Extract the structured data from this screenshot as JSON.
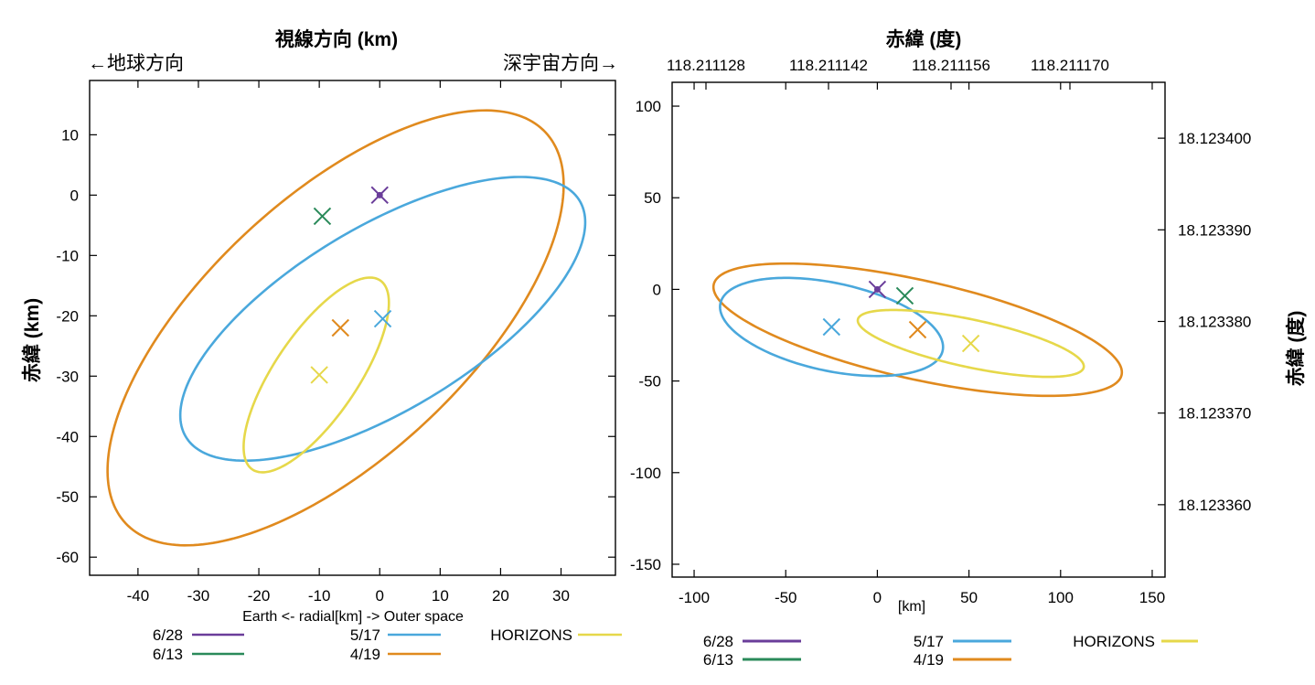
{
  "chart_data": [
    {
      "type": "scatter",
      "title": "視線方向 (km)",
      "left_direction": "←地球方向",
      "right_direction": "深宇宙方向→",
      "xlabel": "Earth <-  radial[km] -> Outer space",
      "ylabel": "赤緯 (km)",
      "xlim": [
        -48,
        39
      ],
      "ylim": [
        -63,
        19
      ],
      "xticks": [
        -40,
        -30,
        -20,
        -10,
        0,
        10,
        20,
        30
      ],
      "yticks": [
        10,
        0,
        -10,
        -20,
        -30,
        -40,
        -50,
        -60
      ],
      "grid": false,
      "legend_position": "bottom",
      "legend": [
        {
          "name": "6/28",
          "color": "#6a3d9a"
        },
        {
          "name": "6/13",
          "color": "#2a8a5a"
        },
        {
          "name": "5/17",
          "color": "#4aa8dc"
        },
        {
          "name": "4/19",
          "color": "#e08a1e"
        },
        {
          "name": "HORIZONS",
          "color": "#e6d84a"
        }
      ],
      "points": [
        {
          "series": "6/28",
          "x": 0,
          "y": 0,
          "color": "#6a3d9a"
        },
        {
          "series": "6/13",
          "x": -9.5,
          "y": -3.5,
          "color": "#2a8a5a"
        },
        {
          "series": "5/17",
          "x": 0.5,
          "y": -20.5,
          "color": "#4aa8dc"
        },
        {
          "series": "4/19",
          "x": -6.5,
          "y": -22,
          "color": "#e08a1e"
        },
        {
          "series": "HORIZONS",
          "x": -10,
          "y": -29.8,
          "color": "#e6d84a"
        }
      ],
      "ellipses": [
        {
          "series": "4/19",
          "cx": -7.3,
          "cy": -22,
          "semi_major": 47.5,
          "semi_minor": 21.6,
          "angle_deg": 43,
          "color": "#e08a1e"
        },
        {
          "series": "5/17",
          "cx": 0.5,
          "cy": -20.5,
          "semi_major": 38.0,
          "semi_minor": 15.2,
          "angle_deg": 31,
          "color": "#4aa8dc"
        },
        {
          "series": "HORIZONS",
          "cx": -10.5,
          "cy": -29.8,
          "semi_major": 18.9,
          "semi_minor": 6.9,
          "angle_deg": 56,
          "color": "#e6d84a"
        }
      ]
    },
    {
      "type": "scatter",
      "title": "赤緯 (度)",
      "xlabel": "[km]",
      "ylabel_right": "赤緯 (度)",
      "top_axis_labels": [
        "118.211128",
        "118.211142",
        "118.211156",
        "118.211170"
      ],
      "right_axis_labels": [
        "18.123400",
        "18.123390",
        "18.123380",
        "18.123370",
        "18.123360"
      ],
      "right_axis_positions": [
        82.5,
        32.5,
        -17.5,
        -67.5,
        -117.5
      ],
      "xlim": [
        -112,
        157
      ],
      "ylim": [
        -157,
        113
      ],
      "xticks": [
        -100,
        -50,
        0,
        50,
        100,
        150
      ],
      "yticks": [
        100,
        50,
        0,
        -50,
        -100,
        -150
      ],
      "grid": false,
      "legend_position": "bottom",
      "legend": [
        {
          "name": "6/28",
          "color": "#6a3d9a"
        },
        {
          "name": "6/13",
          "color": "#2a8a5a"
        },
        {
          "name": "5/17",
          "color": "#4aa8dc"
        },
        {
          "name": "4/19",
          "color": "#e08a1e"
        },
        {
          "name": "HORIZONS",
          "color": "#e6d84a"
        }
      ],
      "points": [
        {
          "series": "6/28",
          "x": 0,
          "y": 0,
          "color": "#6a3d9a"
        },
        {
          "series": "6/13",
          "x": 15,
          "y": -3.5,
          "color": "#2a8a5a"
        },
        {
          "series": "5/17",
          "x": -25,
          "y": -20.5,
          "color": "#4aa8dc"
        },
        {
          "series": "4/19",
          "x": 22,
          "y": -22,
          "color": "#e08a1e"
        },
        {
          "series": "HORIZONS",
          "x": 51,
          "y": -29.5,
          "color": "#e6d84a"
        }
      ],
      "ellipses": [
        {
          "series": "4/19",
          "cx": 22,
          "cy": -22,
          "semi_major": 114,
          "semi_minor": 27,
          "angle_deg": -12.5,
          "color": "#e08a1e"
        },
        {
          "series": "5/17",
          "cx": -25,
          "cy": -20.5,
          "semi_major": 62,
          "semi_minor": 24,
          "angle_deg": -12,
          "color": "#4aa8dc"
        },
        {
          "series": "HORIZONS",
          "cx": 51,
          "cy": -29.5,
          "semi_major": 63,
          "semi_minor": 13,
          "angle_deg": -12,
          "color": "#e6d84a"
        }
      ]
    }
  ]
}
